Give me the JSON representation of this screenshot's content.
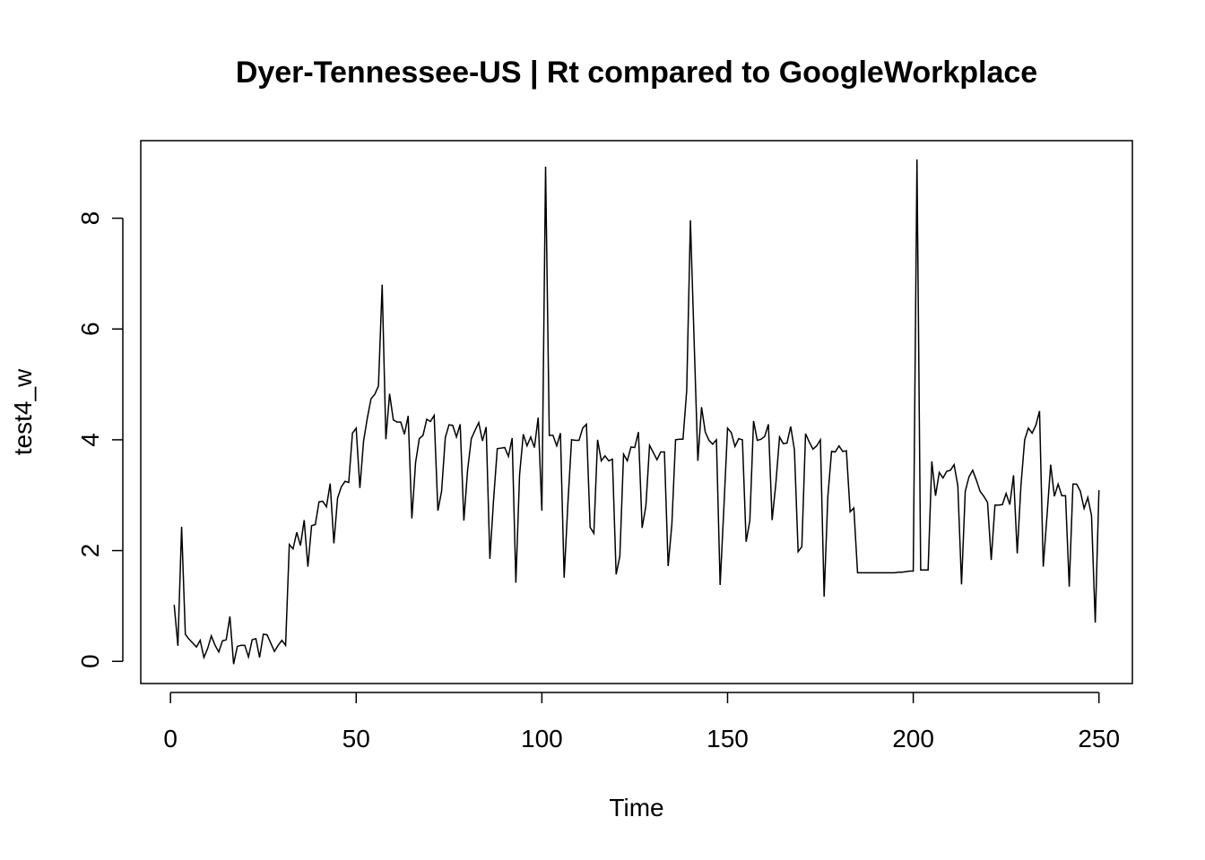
{
  "chart_data": {
    "type": "line",
    "title": "Dyer-Tennessee-US | Rt compared to GoogleWorkplace",
    "xlabel": "Time",
    "ylabel": "test4_w",
    "xlim": [
      -8,
      259
    ],
    "ylim": [
      -0.4,
      9.4
    ],
    "x_ticks": [
      0,
      50,
      100,
      150,
      200,
      250
    ],
    "y_ticks": [
      0,
      2,
      4,
      6,
      8
    ],
    "grid": false,
    "line_color": "#000000",
    "series": [
      {
        "x_start": 1,
        "values": [
          1.02,
          0.28,
          2.43,
          0.49,
          0.4,
          0.33,
          0.26,
          0.38,
          0.07,
          0.23,
          0.46,
          0.29,
          0.17,
          0.37,
          0.39,
          0.81,
          -0.05,
          0.27,
          0.29,
          0.29,
          0.08,
          0.39,
          0.41,
          0.07,
          0.49,
          0.48,
          0.33,
          0.18,
          0.29,
          0.38,
          0.29,
          2.11,
          2.03,
          2.33,
          2.09,
          2.55,
          1.71,
          2.45,
          2.47,
          2.88,
          2.89,
          2.79,
          3.21,
          2.13,
          2.95,
          3.15,
          3.25,
          3.23,
          4.12,
          4.21,
          3.13,
          3.98,
          4.39,
          4.74,
          4.82,
          4.97,
          6.8,
          4.01,
          4.83,
          4.36,
          4.32,
          4.32,
          4.1,
          4.43,
          2.58,
          3.59,
          4.02,
          4.08,
          4.37,
          4.33,
          4.44,
          2.72,
          3.07,
          4.04,
          4.27,
          4.26,
          4.05,
          4.28,
          2.54,
          3.45,
          4.02,
          4.17,
          4.31,
          3.98,
          4.23,
          1.85,
          2.92,
          3.84,
          3.85,
          3.86,
          3.7,
          4.03,
          1.42,
          3.37,
          4.1,
          3.89,
          4.05,
          3.86,
          4.4,
          2.72,
          8.93,
          4.08,
          4.08,
          3.89,
          4.12,
          1.51,
          2.84,
          4.0,
          3.99,
          3.99,
          4.21,
          4.28,
          2.42,
          2.31,
          4.0,
          3.62,
          3.71,
          3.62,
          3.65,
          1.57,
          1.9,
          3.74,
          3.62,
          3.87,
          3.86,
          4.14,
          2.41,
          2.8,
          3.9,
          3.77,
          3.64,
          3.78,
          3.78,
          1.72,
          2.47,
          4.0,
          4.01,
          4.01,
          4.89,
          7.96,
          5.78,
          3.62,
          4.59,
          4.14,
          3.99,
          3.92,
          4.0,
          1.38,
          2.76,
          4.21,
          4.13,
          3.88,
          4.02,
          4.0,
          2.16,
          2.54,
          4.34,
          3.99,
          4.01,
          4.06,
          4.28,
          2.55,
          3.21,
          4.05,
          3.93,
          3.94,
          4.24,
          3.82,
          1.98,
          2.07,
          4.11,
          3.96,
          3.83,
          3.89,
          4.0,
          1.17,
          2.97,
          3.79,
          3.78,
          3.89,
          3.79,
          3.8,
          2.7,
          2.77,
          1.6,
          1.6,
          1.6,
          1.6,
          1.6,
          1.6,
          1.6,
          1.6,
          1.6,
          1.6,
          1.6,
          1.61,
          1.61,
          1.62,
          1.63,
          1.63,
          9.06,
          1.65,
          1.65,
          1.65,
          3.61,
          2.99,
          3.41,
          3.31,
          3.43,
          3.45,
          3.55,
          3.17,
          1.39,
          3.07,
          3.33,
          3.45,
          3.27,
          3.07,
          2.98,
          2.87,
          1.83,
          2.82,
          2.82,
          2.83,
          3.03,
          2.83,
          3.36,
          1.95,
          3.18,
          4.0,
          4.21,
          4.12,
          4.26,
          4.52,
          1.71,
          2.62,
          3.55,
          2.98,
          3.2,
          2.99,
          2.99,
          1.35,
          3.2,
          3.2,
          3.07,
          2.76,
          2.96,
          2.63,
          0.7,
          3.09
        ]
      }
    ]
  }
}
